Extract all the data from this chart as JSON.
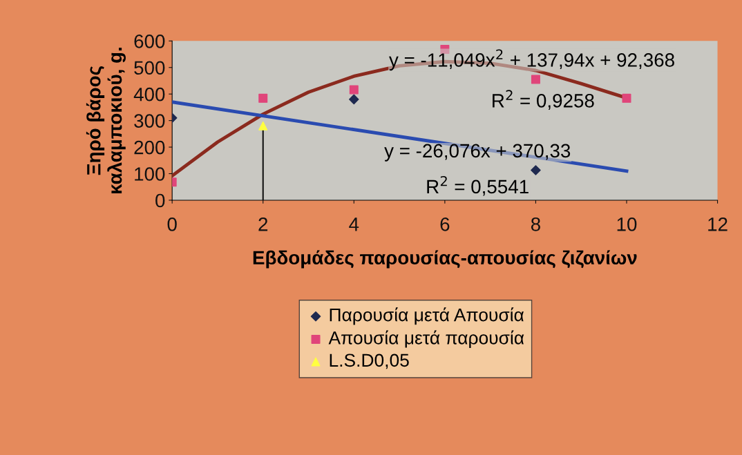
{
  "chart_data": {
    "type": "scatter",
    "xlabel": "Εβδομάδες παρουσίας-απουσίας ζιζανίων",
    "ylabel": "Ξηρό βάρος\nκαλαμποκιού, g.",
    "x": [
      0,
      2,
      4,
      6,
      8,
      10
    ],
    "xlim": [
      0,
      12
    ],
    "xticks": [
      0,
      2,
      4,
      6,
      8,
      10,
      12
    ],
    "ylim": [
      0,
      600
    ],
    "yticks": [
      0,
      100,
      200,
      300,
      400,
      500,
      600
    ],
    "grid": false,
    "legend": "bottom",
    "series": [
      {
        "name": "Παρουσία μετά Απουσία",
        "color": "#1f2a50",
        "marker": "diamond",
        "values": [
          310,
          null,
          380,
          null,
          113,
          null
        ]
      },
      {
        "name": "Απουσία μετά παρουσία",
        "color": "#e0457a",
        "marker": "square",
        "values": [
          68,
          384,
          416,
          568,
          455,
          384
        ]
      },
      {
        "name": "L.S.D0,05",
        "color": "#ffff40",
        "marker": "triangle",
        "x": [
          2
        ],
        "values": [
          280
        ],
        "errors": [
          [
            0,
            280
          ]
        ]
      },
      {
        "type": "line",
        "color": "#8b2a1e",
        "marker": "none",
        "x": [
          0,
          1,
          2,
          3,
          4,
          5,
          6,
          7,
          8,
          9,
          10
        ],
        "values": [
          92,
          219,
          324,
          407,
          467,
          506,
          522,
          516,
          489,
          439,
          385
        ]
      },
      {
        "type": "line",
        "color": "#2a4bb0",
        "marker": "none",
        "x": [
          0,
          10
        ],
        "values": [
          370,
          110
        ]
      }
    ],
    "annotations": [
      "y = -11,049x$^{2}$ + 137,94x + 92,368",
      "R$^{2}$ = 0,9258",
      "y = -26,076x + 370,33",
      "R$^{2}$ = 0,5541"
    ]
  }
}
